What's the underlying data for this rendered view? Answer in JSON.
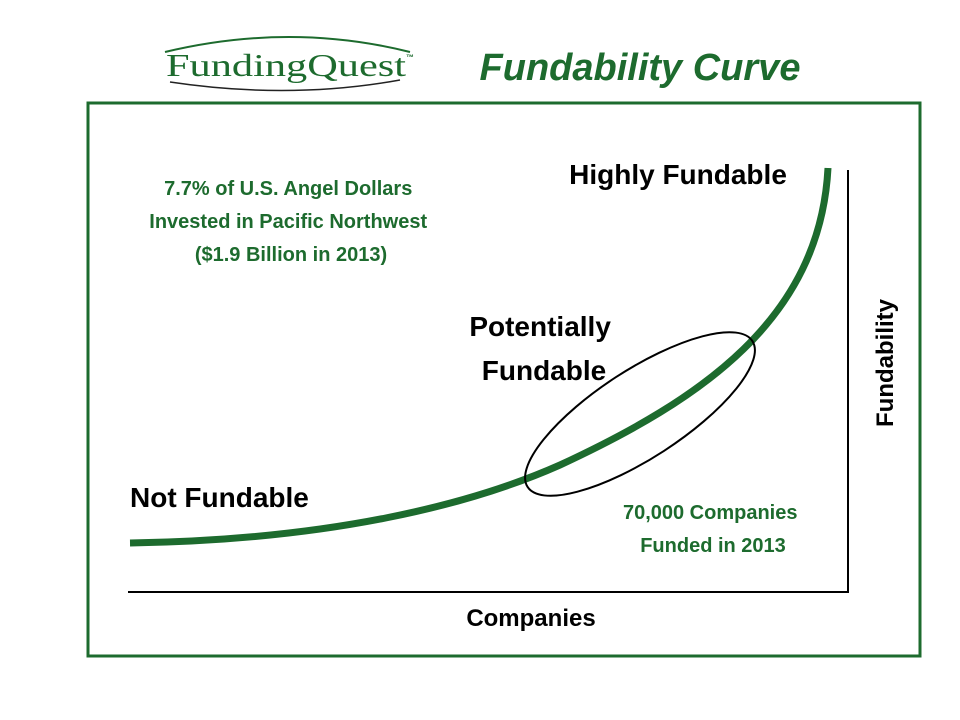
{
  "logo": {
    "name": "FundingQuest",
    "trademark": "™"
  },
  "title": "Fundability Curve",
  "annotation_top": [
    "7.7% of U.S. Angel Dollars",
    "Invested in Pacific Northwest",
    "($1.9 Billion in 2013)"
  ],
  "labels": {
    "high": "Highly Fundable",
    "potential": [
      "Potentially",
      "Fundable"
    ],
    "low": "Not Fundable"
  },
  "annotation_bottom": [
    "70,000 Companies",
    "Funded in 2013"
  ],
  "axes": {
    "x": "Companies",
    "y": "Fundability"
  }
}
